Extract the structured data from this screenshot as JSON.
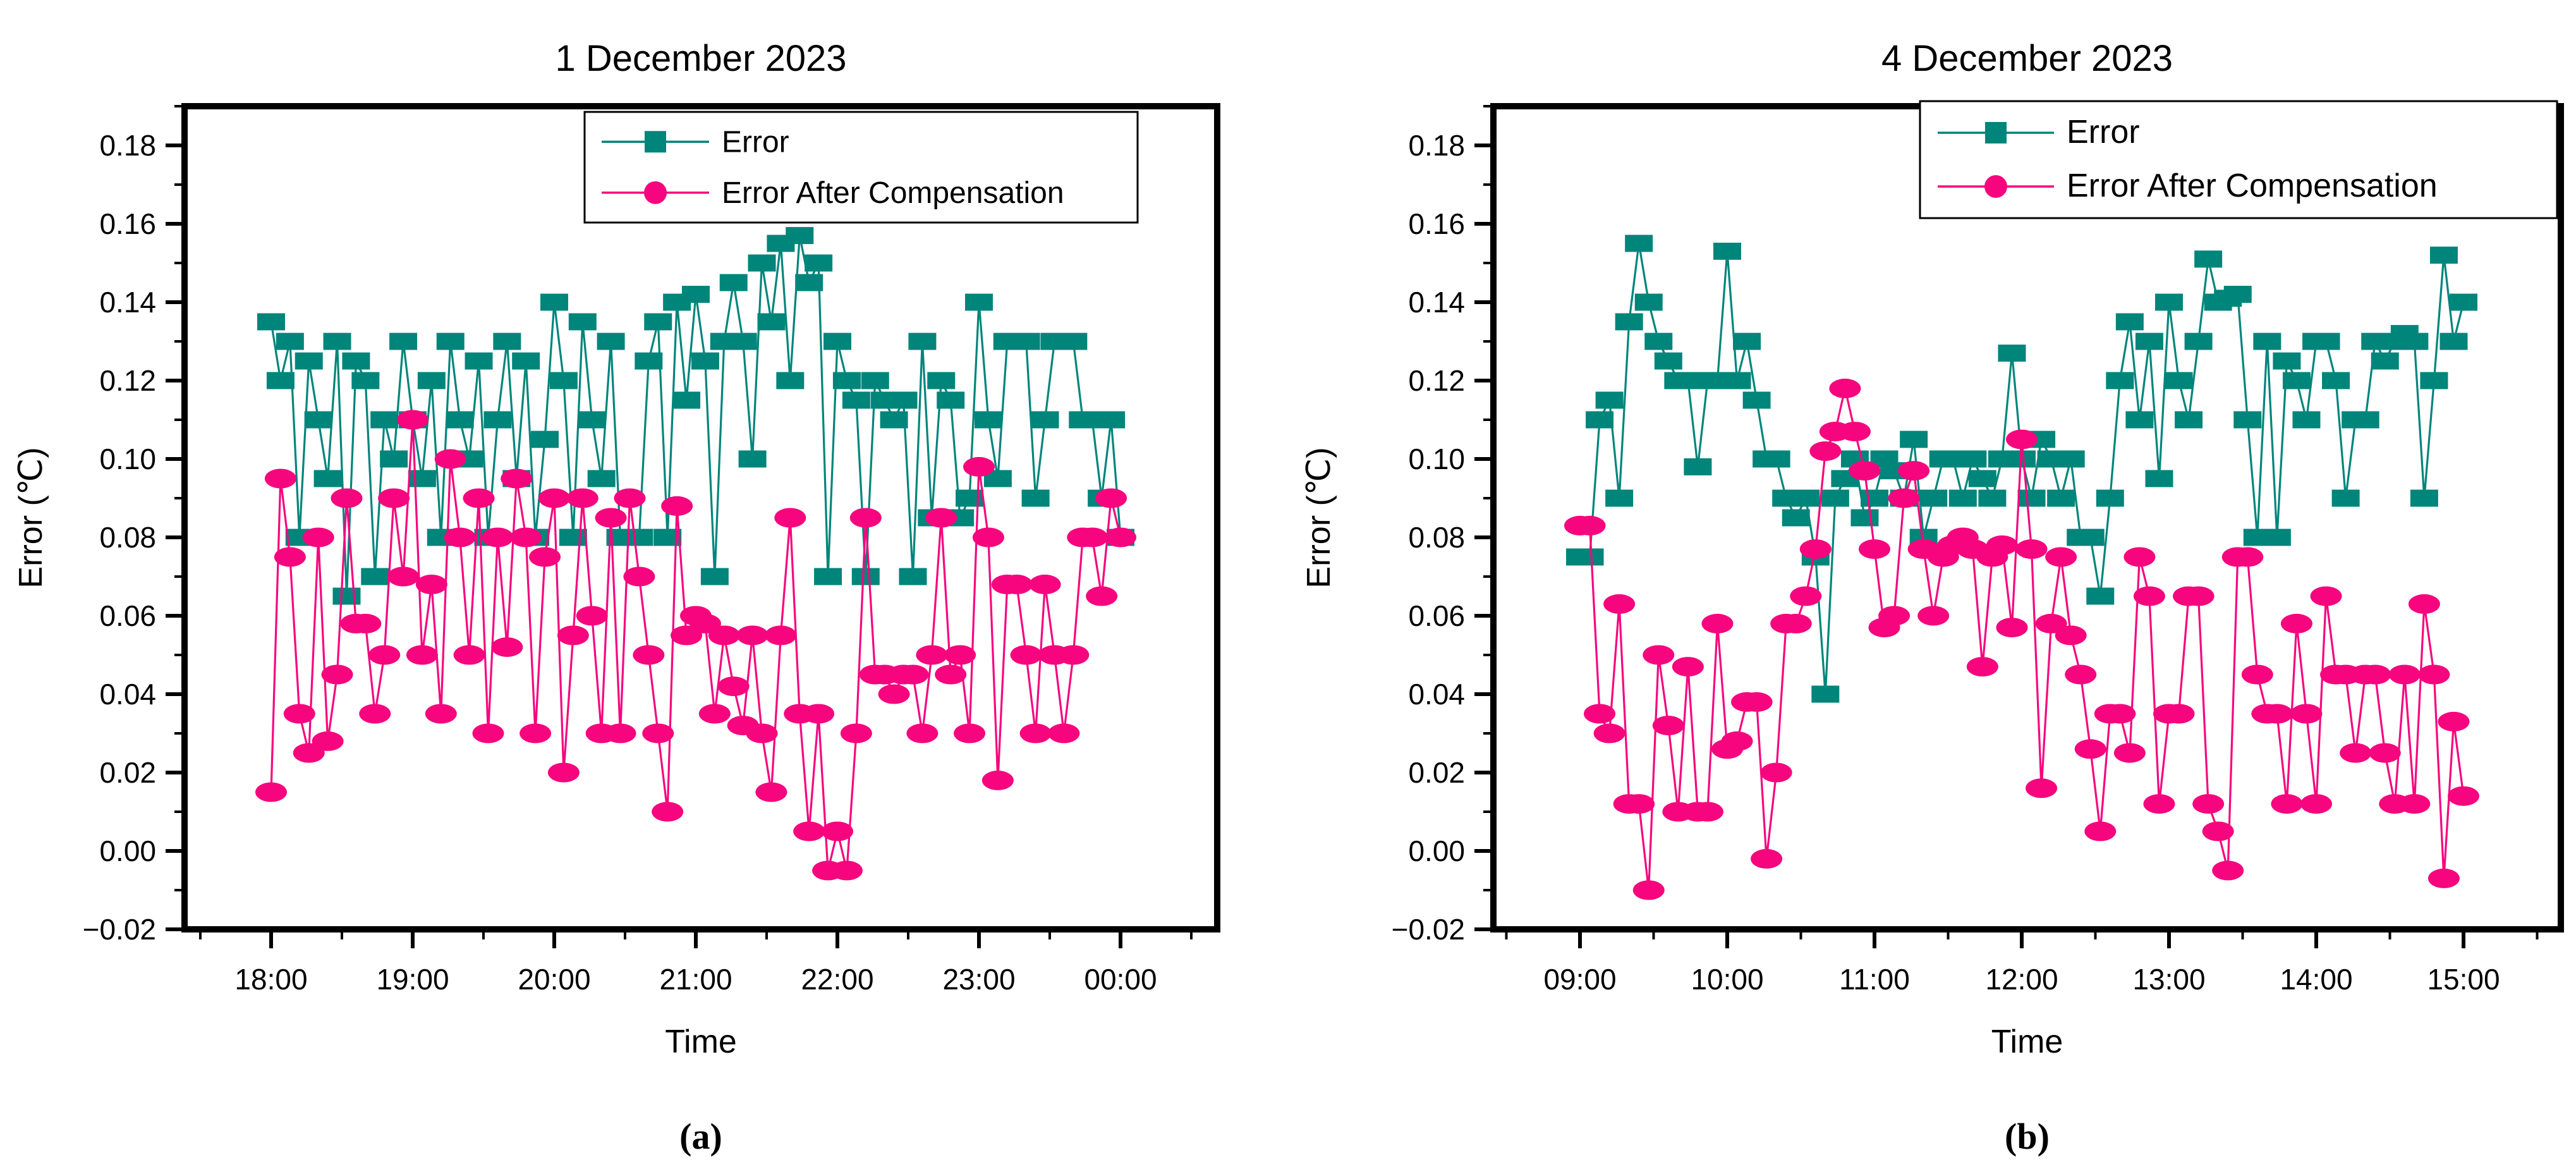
{
  "page": {
    "background": "#ffffff",
    "text_color": "#000000"
  },
  "colors": {
    "error_series": "#00857B",
    "compensated_series": "#F6057E",
    "axis": "#000000",
    "legend_background": "#FFFFFF"
  },
  "chart_data": [
    {
      "type": "line",
      "title": "1 December 2023",
      "xlabel": "Time",
      "ylabel": "Error (℃)",
      "caption": "(a)",
      "legend": [
        "Error",
        "Error After Compensation"
      ],
      "legend_position": "top-right-inside",
      "grid": false,
      "xlim": [
        17.3884,
        24.683
      ],
      "ylim": [
        -0.02,
        0.19
      ],
      "x_tick_hours": [
        18,
        19,
        20,
        21,
        22,
        23,
        24
      ],
      "x_tick_labels": [
        "18:00",
        "19:00",
        "20:00",
        "21:00",
        "22:00",
        "23:00",
        "00:00"
      ],
      "x_minor_hours": [
        17.5,
        18.5,
        19.5,
        20.5,
        21.5,
        22.5,
        23.5,
        24.5
      ],
      "y_ticks": [
        -0.02,
        0.0,
        0.02,
        0.04,
        0.06,
        0.08,
        0.1,
        0.12,
        0.14,
        0.16,
        0.18
      ],
      "y_tick_labels": [
        "−0.02",
        "0.00",
        "0.02",
        "0.04",
        "0.06",
        "0.08",
        "0.10",
        "0.12",
        "0.14",
        "0.16",
        "0.18"
      ],
      "y_minor_ticks": [
        -0.01,
        0.01,
        0.03,
        0.05,
        0.07,
        0.09,
        0.11,
        0.13,
        0.15,
        0.17,
        0.19
      ],
      "x_start_hour": 18,
      "x_step_minutes": 4,
      "series": [
        {
          "name": "Error",
          "marker": "square",
          "color": "#00857B",
          "values": [
            0.135,
            0.12,
            0.13,
            0.08,
            0.125,
            0.11,
            0.095,
            0.13,
            0.065,
            0.125,
            0.12,
            0.07,
            0.11,
            0.1,
            0.13,
            0.11,
            0.095,
            0.12,
            0.08,
            0.13,
            0.11,
            0.1,
            0.125,
            0.08,
            0.11,
            0.13,
            0.095,
            0.125,
            0.08,
            0.105,
            0.14,
            0.12,
            0.08,
            0.135,
            0.11,
            0.095,
            0.13,
            0.08,
            0.08,
            0.08,
            0.125,
            0.135,
            0.08,
            0.14,
            0.115,
            0.142,
            0.125,
            0.07,
            0.13,
            0.145,
            0.13,
            0.1,
            0.15,
            0.135,
            0.155,
            0.12,
            0.157,
            0.145,
            0.15,
            0.07,
            0.13,
            0.12,
            0.115,
            0.07,
            0.12,
            0.115,
            0.11,
            0.115,
            0.07,
            0.13,
            0.085,
            0.12,
            0.115,
            0.085,
            0.09,
            0.14,
            0.11,
            0.095,
            0.13,
            0.13,
            0.13,
            0.09,
            0.11,
            0.13,
            0.13,
            0.13,
            0.11,
            0.11,
            0.09,
            0.11,
            0.08
          ]
        },
        {
          "name": "Error After Compensation",
          "marker": "circle",
          "color": "#F6057E",
          "values": [
            0.015,
            0.095,
            0.075,
            0.035,
            0.025,
            0.08,
            0.028,
            0.045,
            0.09,
            0.058,
            0.058,
            0.035,
            0.05,
            0.09,
            0.07,
            0.11,
            0.05,
            0.068,
            0.035,
            0.1,
            0.08,
            0.05,
            0.09,
            0.03,
            0.08,
            0.052,
            0.095,
            0.08,
            0.03,
            0.075,
            0.09,
            0.02,
            0.055,
            0.09,
            0.06,
            0.03,
            0.085,
            0.03,
            0.09,
            0.07,
            0.05,
            0.03,
            0.01,
            0.088,
            0.055,
            0.06,
            0.058,
            0.035,
            0.055,
            0.042,
            0.032,
            0.055,
            0.03,
            0.015,
            0.055,
            0.085,
            0.035,
            0.005,
            0.035,
            -0.005,
            0.005,
            -0.005,
            0.03,
            0.085,
            0.045,
            0.045,
            0.04,
            0.045,
            0.045,
            0.03,
            0.05,
            0.085,
            0.045,
            0.05,
            0.03,
            0.098,
            0.08,
            0.018,
            0.068,
            0.068,
            0.05,
            0.03,
            0.068,
            0.05,
            0.03,
            0.05,
            0.08,
            0.08,
            0.065,
            0.09,
            0.08
          ]
        }
      ]
    },
    {
      "type": "line",
      "title": "4 December 2023",
      "xlabel": "Time",
      "ylabel": "Error (℃)",
      "caption": "(b)",
      "legend": [
        "Error",
        "Error After Compensation"
      ],
      "legend_position": "top-right-inside",
      "grid": false,
      "xlim": [
        8.412,
        15.6609
      ],
      "ylim": [
        -0.02,
        0.19
      ],
      "x_tick_hours": [
        9,
        10,
        11,
        12,
        13,
        14,
        15
      ],
      "x_tick_labels": [
        "09:00",
        "10:00",
        "11:00",
        "12:00",
        "13:00",
        "14:00",
        "15:00"
      ],
      "x_minor_hours": [
        8.5,
        9.5,
        10.5,
        11.5,
        12.5,
        13.5,
        14.5,
        15.5
      ],
      "y_ticks": [
        -0.02,
        0.0,
        0.02,
        0.04,
        0.06,
        0.08,
        0.1,
        0.12,
        0.14,
        0.16,
        0.18
      ],
      "y_tick_labels": [
        "−0.02",
        "0.00",
        "0.02",
        "0.04",
        "0.06",
        "0.08",
        "0.10",
        "0.12",
        "0.14",
        "0.16",
        "0.18"
      ],
      "y_minor_ticks": [
        -0.01,
        0.01,
        0.03,
        0.05,
        0.07,
        0.09,
        0.11,
        0.13,
        0.15,
        0.17,
        0.19
      ],
      "x_start_hour": 9,
      "x_step_minutes": 4,
      "series": [
        {
          "name": "Error",
          "marker": "square",
          "color": "#00857B",
          "values": [
            0.075,
            0.075,
            0.11,
            0.115,
            0.09,
            0.135,
            0.155,
            0.14,
            0.13,
            0.125,
            0.12,
            0.12,
            0.098,
            0.12,
            0.12,
            0.153,
            0.12,
            0.13,
            0.115,
            0.1,
            0.1,
            0.09,
            0.085,
            0.09,
            0.075,
            0.04,
            0.09,
            0.095,
            0.1,
            0.085,
            0.09,
            0.1,
            0.097,
            0.09,
            0.105,
            0.08,
            0.09,
            0.1,
            0.1,
            0.09,
            0.1,
            0.095,
            0.09,
            0.1,
            0.127,
            0.1,
            0.09,
            0.105,
            0.1,
            0.09,
            0.1,
            0.08,
            0.08,
            0.065,
            0.09,
            0.12,
            0.135,
            0.11,
            0.13,
            0.095,
            0.14,
            0.12,
            0.11,
            0.13,
            0.151,
            0.14,
            0.141,
            0.142,
            0.11,
            0.08,
            0.13,
            0.08,
            0.125,
            0.12,
            0.11,
            0.13,
            0.13,
            0.12,
            0.09,
            0.11,
            0.11,
            0.13,
            0.125,
            0.13,
            0.132,
            0.13,
            0.09,
            0.12,
            0.152,
            0.13,
            0.14
          ]
        },
        {
          "name": "Error After Compensation",
          "marker": "circle",
          "color": "#F6057E",
          "values": [
            0.083,
            0.083,
            0.035,
            0.03,
            0.063,
            0.012,
            0.012,
            -0.01,
            0.05,
            0.032,
            0.01,
            0.047,
            0.01,
            0.01,
            0.058,
            0.026,
            0.028,
            0.038,
            0.038,
            -0.002,
            0.02,
            0.058,
            0.058,
            0.065,
            0.077,
            0.102,
            0.107,
            0.118,
            0.107,
            0.097,
            0.077,
            0.057,
            0.06,
            0.09,
            0.097,
            0.077,
            0.06,
            0.075,
            0.078,
            0.08,
            0.077,
            0.047,
            0.075,
            0.078,
            0.057,
            0.105,
            0.077,
            0.016,
            0.058,
            0.075,
            0.055,
            0.045,
            0.026,
            0.005,
            0.035,
            0.035,
            0.025,
            0.075,
            0.065,
            0.012,
            0.035,
            0.035,
            0.065,
            0.065,
            0.012,
            0.005,
            -0.005,
            0.075,
            0.075,
            0.045,
            0.035,
            0.035,
            0.012,
            0.058,
            0.035,
            0.012,
            0.065,
            0.045,
            0.045,
            0.025,
            0.045,
            0.045,
            0.025,
            0.012,
            0.045,
            0.012,
            0.063,
            0.045,
            -0.007,
            0.033,
            0.014
          ]
        }
      ]
    }
  ]
}
